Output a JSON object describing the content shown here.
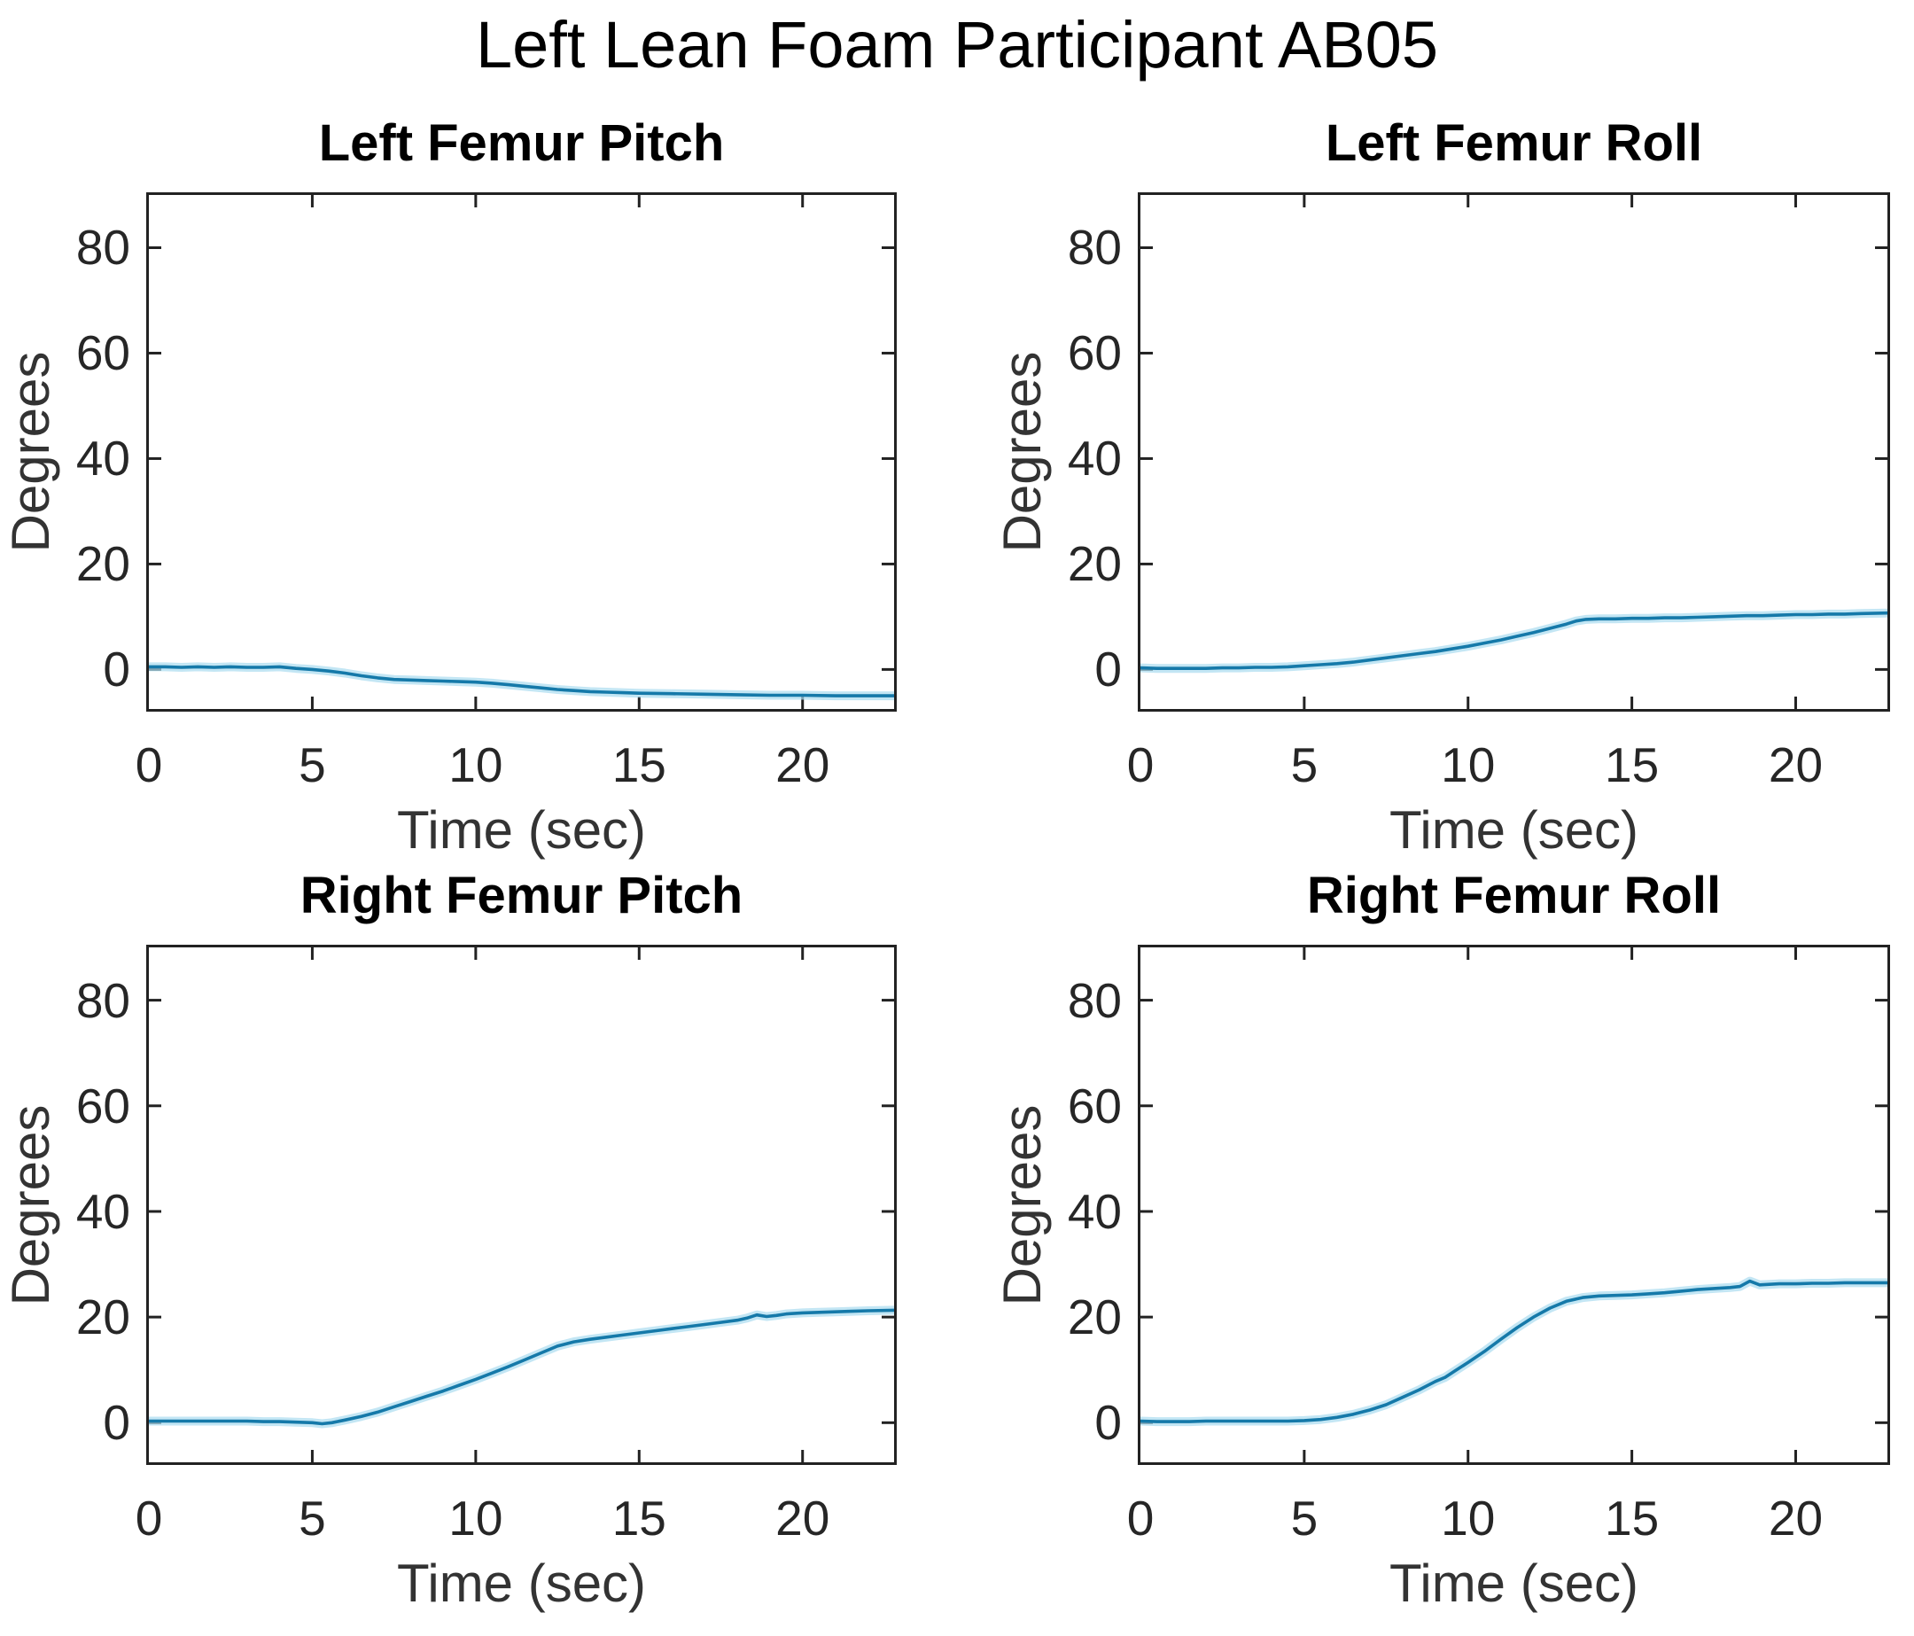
{
  "figure": {
    "title": "Left Lean Foam Participant AB05",
    "background": "#ffffff",
    "axis_color": "#222222",
    "tick_label_color": "#262626"
  },
  "chart_data": [
    {
      "type": "line",
      "title": "Left Femur Pitch",
      "xlabel": "Time (sec)",
      "ylabel": "Degrees",
      "xlim": [
        0,
        22.8
      ],
      "ylim": [
        -7.5,
        90
      ],
      "xticks": [
        0,
        5,
        10,
        15,
        20
      ],
      "yticks": [
        0,
        20,
        40,
        60,
        80
      ],
      "grid": false,
      "legend": "none",
      "line_color": "#1579a9",
      "halo_color": "#a9dcef",
      "x": [
        0,
        0.5,
        1,
        1.5,
        2,
        2.5,
        3,
        3.5,
        4,
        4.5,
        5,
        5.5,
        6,
        6.5,
        7,
        7.5,
        8,
        8.5,
        9,
        9.5,
        10,
        10.5,
        11,
        11.5,
        12,
        12.5,
        13,
        13.5,
        14,
        14.5,
        15,
        16,
        17,
        18,
        19,
        20,
        21,
        22,
        22.8
      ],
      "y": [
        0.5,
        0.5,
        0.4,
        0.5,
        0.4,
        0.5,
        0.4,
        0.4,
        0.5,
        0.2,
        0,
        -0.3,
        -0.7,
        -1.2,
        -1.6,
        -1.9,
        -2.0,
        -2.1,
        -2.2,
        -2.3,
        -2.4,
        -2.6,
        -2.9,
        -3.2,
        -3.5,
        -3.8,
        -4.0,
        -4.2,
        -4.3,
        -4.4,
        -4.5,
        -4.6,
        -4.7,
        -4.8,
        -4.9,
        -4.9,
        -5.0,
        -5.0,
        -5.0
      ]
    },
    {
      "type": "line",
      "title": "Left Femur Roll",
      "xlabel": "Time (sec)",
      "ylabel": "Degrees",
      "xlim": [
        0,
        22.8
      ],
      "ylim": [
        -7.5,
        90
      ],
      "xticks": [
        0,
        5,
        10,
        15,
        20
      ],
      "yticks": [
        0,
        20,
        40,
        60,
        80
      ],
      "grid": false,
      "legend": "none",
      "line_color": "#1579a9",
      "halo_color": "#a9dcef",
      "x": [
        0,
        0.5,
        1,
        1.5,
        2,
        2.5,
        3,
        3.5,
        4,
        4.5,
        5,
        5.5,
        6,
        6.5,
        7,
        7.5,
        8,
        8.5,
        9,
        9.5,
        10,
        10.5,
        11,
        11.5,
        12,
        12.5,
        13,
        13.3,
        13.6,
        14,
        14.5,
        15,
        15.5,
        16,
        16.5,
        17,
        17.5,
        18,
        18.5,
        19,
        19.5,
        20,
        20.5,
        21,
        21.5,
        22,
        22.8
      ],
      "y": [
        0.3,
        0.2,
        0.2,
        0.2,
        0.2,
        0.3,
        0.3,
        0.4,
        0.4,
        0.5,
        0.7,
        0.9,
        1.1,
        1.4,
        1.8,
        2.2,
        2.6,
        3.0,
        3.4,
        3.9,
        4.4,
        5.0,
        5.6,
        6.3,
        7.0,
        7.8,
        8.6,
        9.2,
        9.5,
        9.6,
        9.6,
        9.7,
        9.7,
        9.8,
        9.8,
        9.9,
        10.0,
        10.1,
        10.2,
        10.2,
        10.3,
        10.4,
        10.4,
        10.5,
        10.5,
        10.6,
        10.7
      ]
    },
    {
      "type": "line",
      "title": "Right Femur Pitch",
      "xlabel": "Time (sec)",
      "ylabel": "Degrees",
      "xlim": [
        0,
        22.8
      ],
      "ylim": [
        -7.5,
        90
      ],
      "xticks": [
        0,
        5,
        10,
        15,
        20
      ],
      "yticks": [
        0,
        20,
        40,
        60,
        80
      ],
      "grid": false,
      "legend": "none",
      "line_color": "#1579a9",
      "halo_color": "#a9dcef",
      "x": [
        0,
        0.5,
        1,
        1.5,
        2,
        2.5,
        3,
        3.5,
        4,
        4.5,
        5,
        5.3,
        5.6,
        6,
        6.5,
        7,
        7.5,
        8,
        8.5,
        9,
        9.5,
        10,
        10.5,
        11,
        11.5,
        12,
        12.5,
        13,
        13.5,
        14,
        14.5,
        15,
        15.5,
        16,
        16.5,
        17,
        17.5,
        18,
        18.3,
        18.6,
        18.9,
        19.2,
        19.5,
        20,
        20.5,
        21,
        21.5,
        22,
        22.8
      ],
      "y": [
        0.3,
        0.3,
        0.3,
        0.3,
        0.3,
        0.3,
        0.3,
        0.2,
        0.2,
        0.1,
        0,
        -0.2,
        0,
        0.5,
        1.2,
        2.0,
        3.0,
        4.0,
        5.0,
        6.0,
        7.1,
        8.2,
        9.4,
        10.6,
        11.9,
        13.2,
        14.5,
        15.3,
        15.8,
        16.2,
        16.6,
        17.0,
        17.4,
        17.8,
        18.2,
        18.6,
        19.0,
        19.4,
        19.8,
        20.4,
        20.1,
        20.3,
        20.6,
        20.8,
        20.9,
        21.0,
        21.1,
        21.2,
        21.3
      ]
    },
    {
      "type": "line",
      "title": "Right Femur Roll",
      "xlabel": "Time (sec)",
      "ylabel": "Degrees",
      "xlim": [
        0,
        22.8
      ],
      "ylim": [
        -7.5,
        90
      ],
      "xticks": [
        0,
        5,
        10,
        15,
        20
      ],
      "yticks": [
        0,
        20,
        40,
        60,
        80
      ],
      "grid": false,
      "legend": "none",
      "line_color": "#1579a9",
      "halo_color": "#a9dcef",
      "x": [
        0,
        0.5,
        1,
        1.5,
        2,
        2.5,
        3,
        3.5,
        4,
        4.5,
        5,
        5.5,
        6,
        6.5,
        7,
        7.5,
        8,
        8.5,
        9,
        9.3,
        9.6,
        10,
        10.5,
        11,
        11.5,
        12,
        12.5,
        13,
        13.5,
        14,
        14.5,
        15,
        15.5,
        16,
        16.5,
        17,
        17.5,
        18,
        18.3,
        18.6,
        18.9,
        19.2,
        19.5,
        20,
        20.5,
        21,
        21.5,
        22,
        22.8
      ],
      "y": [
        0.3,
        0.2,
        0.2,
        0.2,
        0.3,
        0.3,
        0.3,
        0.3,
        0.3,
        0.3,
        0.4,
        0.6,
        1.0,
        1.6,
        2.4,
        3.4,
        4.8,
        6.2,
        7.8,
        8.6,
        9.8,
        11.4,
        13.5,
        15.8,
        18.0,
        20.0,
        21.7,
        23.0,
        23.7,
        24.0,
        24.1,
        24.2,
        24.4,
        24.6,
        24.9,
        25.2,
        25.4,
        25.6,
        25.8,
        26.8,
        26.1,
        26.2,
        26.3,
        26.3,
        26.4,
        26.4,
        26.5,
        26.5,
        26.5
      ]
    }
  ]
}
